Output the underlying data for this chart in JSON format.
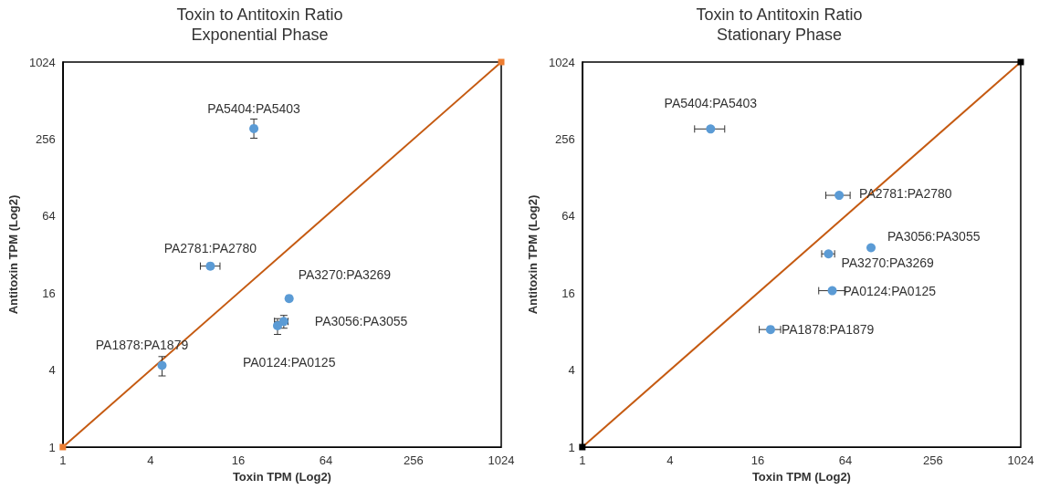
{
  "chart_data": [
    {
      "type": "scatter",
      "title": "Toxin to Antitoxin Ratio",
      "subtitle": "Exponential Phase",
      "xlabel": "Toxin TPM (Log2)",
      "ylabel": "Antitoxin TPM (Log2)",
      "log": "xy",
      "xlim": [
        1,
        1024
      ],
      "ylim": [
        1,
        1024
      ],
      "xticks": [
        1,
        4,
        16,
        64,
        256,
        1024
      ],
      "yticks": [
        1,
        4,
        16,
        64,
        256,
        1024
      ],
      "grid": false,
      "marker": "circle",
      "series": [
        {
          "color": "#5b9bd5",
          "x": [
            20.5,
            10.3,
            35.8,
            32.9,
            29.8,
            4.8
          ],
          "values": [
            309,
            26,
            14.5,
            9.6,
            8.9,
            4.35
          ],
          "errors": [
            [
              260,
              367
            ],
            null,
            null,
            [
              8.5,
              10.7
            ],
            [
              7.6,
              10.1
            ],
            [
              3.6,
              5.1
            ]
          ],
          "xerrors": [
            null,
            [
              8.8,
              12
            ],
            null,
            [
              28.4,
              35.2
            ],
            null,
            null
          ]
        },
        {
          "type": "line",
          "color": "#c55a11",
          "x": [
            1,
            1024
          ],
          "values": [
            1,
            1024
          ],
          "marker": "none",
          "line_style": "solid"
        },
        {
          "color": "#ed7d31",
          "x": [
            1,
            1024
          ],
          "values": [
            1,
            1024
          ],
          "marker": "square"
        }
      ],
      "annotations": [
        {
          "text": "PA5404:PA5403",
          "x": 20.5,
          "y": 309
        },
        {
          "text": "PA2781:PA2780",
          "x": 10.3,
          "y": 26
        },
        {
          "text": "PA3270:PA3269",
          "x": 35.8,
          "y": 14.5
        },
        {
          "text": "PA3056:PA3055",
          "x": 32.9,
          "y": 9.6
        },
        {
          "text": "PA0124:PA0125",
          "x": 29.8,
          "y": 8.9
        },
        {
          "text": "PA1878:PA1879",
          "x": 4.8,
          "y": 4.35
        }
      ]
    },
    {
      "type": "scatter",
      "title": "Toxin to Antitoxin Ratio",
      "subtitle": "Stationary Phase",
      "xlabel": "Toxin TPM (Log2)",
      "ylabel": "Antitoxin TPM (Log2)",
      "log": "xy",
      "xlim": [
        1,
        1024
      ],
      "ylim": [
        1,
        1024
      ],
      "xticks": [
        1,
        4,
        16,
        64,
        256,
        1024
      ],
      "yticks": [
        1,
        4,
        16,
        64,
        256,
        1024
      ],
      "grid": false,
      "marker": "circle",
      "series": [
        {
          "color": "#5b9bd5",
          "x": [
            7.6,
            58,
            96,
            49,
            52,
            19.6
          ],
          "values": [
            307,
            93,
            36.2,
            32.4,
            16.7,
            8.3
          ],
          "xerrors": [
            [
              5.9,
              9.5
            ],
            [
              47,
              69
            ],
            null,
            [
              44,
              54
            ],
            [
              42,
              64
            ],
            [
              16.4,
              23
            ]
          ]
        },
        {
          "type": "line",
          "color": "#c55a11",
          "x": [
            1,
            1024
          ],
          "values": [
            1,
            1024
          ],
          "marker": "none",
          "line_style": "solid"
        },
        {
          "color": "#000000",
          "x": [
            1,
            1024
          ],
          "values": [
            1,
            1024
          ],
          "marker": "square"
        }
      ],
      "annotations": [
        {
          "text": "PA5404:PA5403",
          "x": 7.6,
          "y": 307
        },
        {
          "text": "PA2781:PA2780",
          "x": 58,
          "y": 93
        },
        {
          "text": "PA3056:PA3055",
          "x": 96,
          "y": 36.2
        },
        {
          "text": "PA3270:PA3269",
          "x": 49,
          "y": 32.4
        },
        {
          "text": "PA0124:PA0125",
          "x": 52,
          "y": 16.7
        },
        {
          "text": "PA1878:PA1879",
          "x": 19.6,
          "y": 8.3
        }
      ]
    }
  ]
}
